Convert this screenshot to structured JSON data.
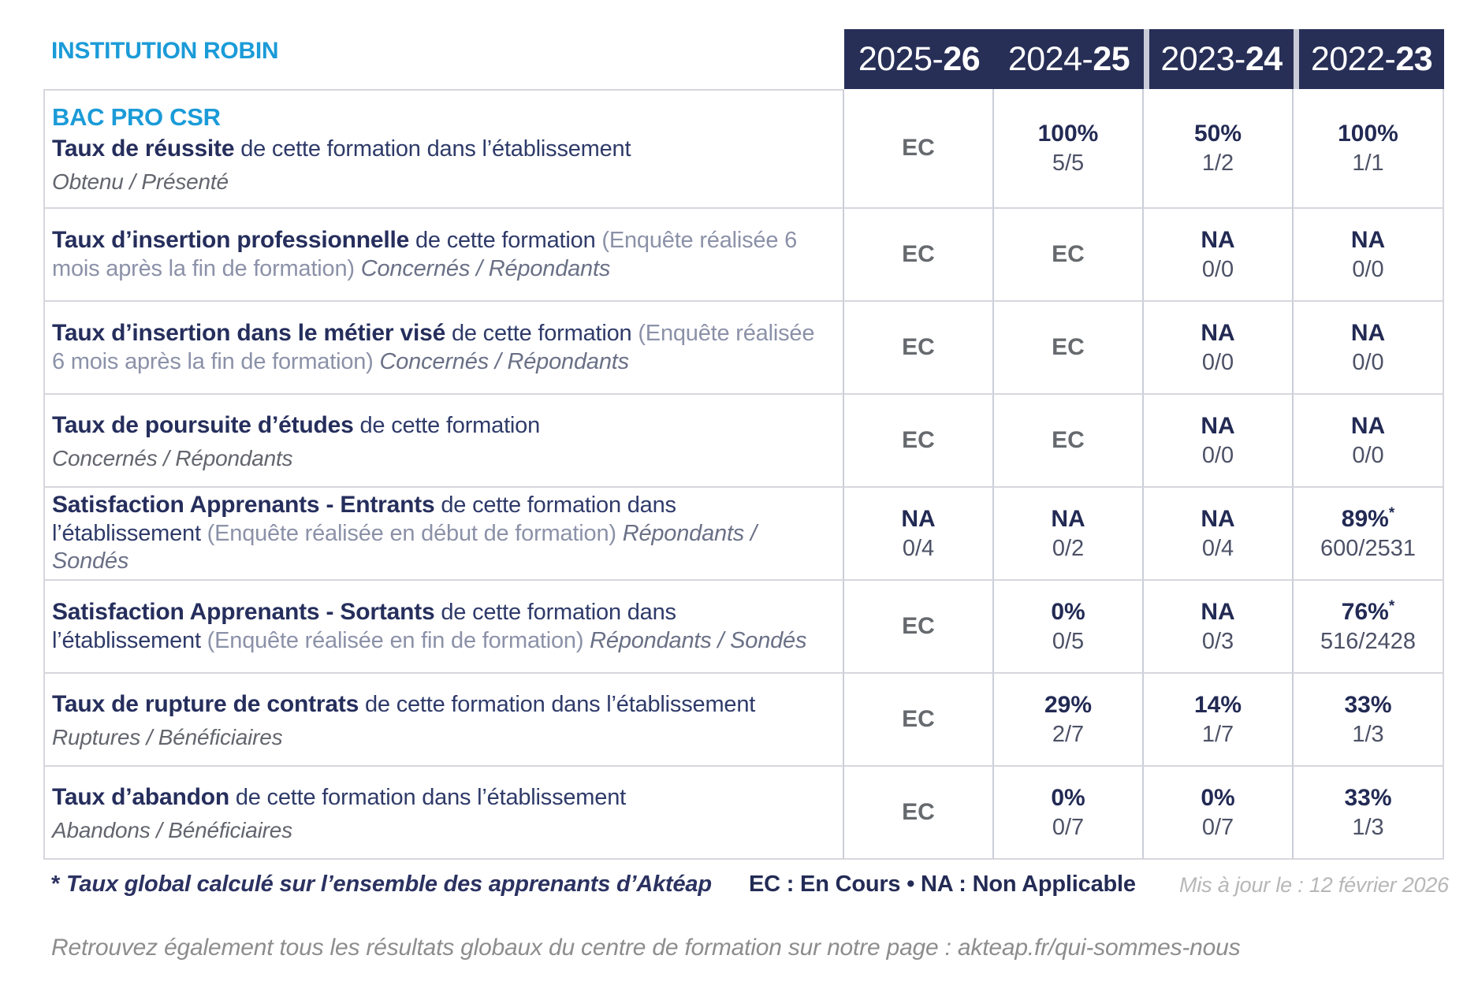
{
  "page": {
    "institution": "INSTITUTION ROBIN"
  },
  "colors": {
    "accent_blue": "#1b9bd8",
    "header_navy": "#272f57",
    "value_navy": "#222a54",
    "ec_cell_bg": "#e3e2ed",
    "highlight_cell_bg": "#eaf3fa",
    "border_gray": "#d6d6de"
  },
  "header": {
    "years": [
      {
        "prefix": "2025-",
        "suffix": "26"
      },
      {
        "prefix": "2024-",
        "suffix": "25"
      },
      {
        "prefix": "2023-",
        "suffix": "24"
      },
      {
        "prefix": "2022-",
        "suffix": "23"
      }
    ]
  },
  "table": {
    "rows": [
      {
        "program": "BAC PRO CSR",
        "bold": "Taux de réussite",
        "normal": " de cette formation dans l’établissement",
        "paren": "",
        "inline_italic": "",
        "subline": "Obtenu / Présenté",
        "cells": [
          {
            "main": "EC",
            "sub": "",
            "bg": "ec",
            "star": ""
          },
          {
            "main": "100%",
            "sub": "5/5",
            "bg": "plain",
            "star": ""
          },
          {
            "main": "50%",
            "sub": "1/2",
            "bg": "plain",
            "star": ""
          },
          {
            "main": "100%",
            "sub": "1/1",
            "bg": "plain",
            "star": ""
          }
        ]
      },
      {
        "program": "",
        "bold": "Taux d’insertion professionnelle",
        "normal": " de cette formation ",
        "paren": "(Enquête réalisée 6 mois après la fin de formation) ",
        "inline_italic": "Concernés / Répondants",
        "subline": "",
        "cells": [
          {
            "main": "EC",
            "sub": "",
            "bg": "ec",
            "star": ""
          },
          {
            "main": "EC",
            "sub": "",
            "bg": "ec",
            "star": ""
          },
          {
            "main": "NA",
            "sub": "0/0",
            "bg": "plain",
            "star": ""
          },
          {
            "main": "NA",
            "sub": "0/0",
            "bg": "plain",
            "star": ""
          }
        ]
      },
      {
        "program": "",
        "bold": "Taux d’insertion dans le métier visé",
        "normal": " de cette formation ",
        "paren": "(Enquête réalisée 6 mois après la fin de formation) ",
        "inline_italic": "Concernés / Répondants",
        "subline": "",
        "cells": [
          {
            "main": "EC",
            "sub": "",
            "bg": "ec",
            "star": ""
          },
          {
            "main": "EC",
            "sub": "",
            "bg": "ec",
            "star": ""
          },
          {
            "main": "NA",
            "sub": "0/0",
            "bg": "plain",
            "star": ""
          },
          {
            "main": "NA",
            "sub": "0/0",
            "bg": "plain",
            "star": ""
          }
        ]
      },
      {
        "program": "",
        "bold": "Taux de poursuite d’études",
        "normal": " de cette formation",
        "paren": "",
        "inline_italic": "",
        "subline": "Concernés / Répondants",
        "cells": [
          {
            "main": "EC",
            "sub": "",
            "bg": "ec",
            "star": ""
          },
          {
            "main": "EC",
            "sub": "",
            "bg": "ec",
            "star": ""
          },
          {
            "main": "NA",
            "sub": "0/0",
            "bg": "plain",
            "star": ""
          },
          {
            "main": "NA",
            "sub": "0/0",
            "bg": "plain",
            "star": ""
          }
        ]
      },
      {
        "program": "",
        "bold": "Satisfaction Apprenants - Entrants",
        "normal": " de cette formation dans l’établissement ",
        "paren": "(Enquête réalisée en début de formation) ",
        "inline_italic": "Répondants / Sondés",
        "subline": "",
        "cells": [
          {
            "main": "NA",
            "sub": "0/4",
            "bg": "plain",
            "star": ""
          },
          {
            "main": "NA",
            "sub": "0/2",
            "bg": "plain",
            "star": ""
          },
          {
            "main": "NA",
            "sub": "0/4",
            "bg": "plain",
            "star": ""
          },
          {
            "main": "89%",
            "sub": "600/2531",
            "bg": "blue",
            "star": "*"
          }
        ]
      },
      {
        "program": "",
        "bold": "Satisfaction Apprenants - Sortants",
        "normal": " de cette formation dans l’établissement ",
        "paren": "(Enquête réalisée en fin de formation) ",
        "inline_italic": "Répondants / Sondés",
        "subline": "",
        "cells": [
          {
            "main": "EC",
            "sub": "",
            "bg": "ec",
            "star": ""
          },
          {
            "main": "0%",
            "sub": "0/5",
            "bg": "plain",
            "star": ""
          },
          {
            "main": "NA",
            "sub": "0/3",
            "bg": "plain",
            "star": ""
          },
          {
            "main": "76%",
            "sub": "516/2428",
            "bg": "blue",
            "star": "*"
          }
        ]
      },
      {
        "program": "",
        "bold": "Taux de rupture de contrats",
        "normal": " de cette formation dans l’établissement",
        "paren": "",
        "inline_italic": "",
        "subline": "Ruptures / Bénéficiaires",
        "cells": [
          {
            "main": "EC",
            "sub": "",
            "bg": "ec",
            "star": ""
          },
          {
            "main": "29%",
            "sub": "2/7",
            "bg": "plain",
            "star": ""
          },
          {
            "main": "14%",
            "sub": "1/7",
            "bg": "plain",
            "star": ""
          },
          {
            "main": "33%",
            "sub": "1/3",
            "bg": "plain",
            "star": ""
          }
        ]
      },
      {
        "program": "",
        "bold": "Taux d’abandon",
        "normal": " de cette formation dans l’établissement",
        "paren": "",
        "inline_italic": "",
        "subline": "Abandons / Bénéficiaires",
        "cells": [
          {
            "main": "EC",
            "sub": "",
            "bg": "ec",
            "star": ""
          },
          {
            "main": "0%",
            "sub": "0/7",
            "bg": "plain",
            "star": ""
          },
          {
            "main": "0%",
            "sub": "0/7",
            "bg": "plain",
            "star": ""
          },
          {
            "main": "33%",
            "sub": "1/3",
            "bg": "plain",
            "star": ""
          }
        ]
      }
    ]
  },
  "footer": {
    "star": "*",
    "note": "Taux global calculé sur l’ensemble des apprenants d’Aktéap",
    "legend": "EC : En Cours  •  NA : Non Applicable",
    "updated": "Mis à jour le : 12 février 2026",
    "bottom": "Retrouvez également tous les résultats globaux du centre de formation sur notre page : akteap.fr/qui-sommes-nous"
  }
}
